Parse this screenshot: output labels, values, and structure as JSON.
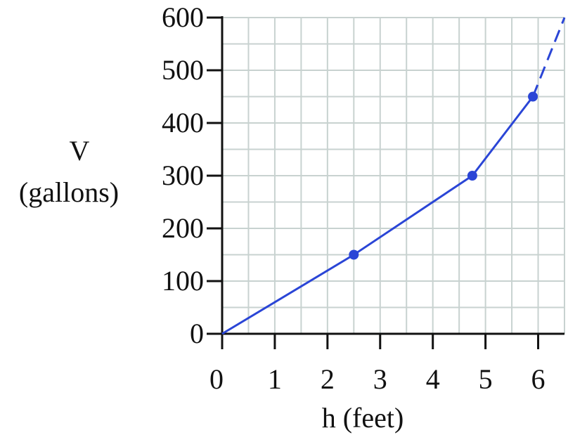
{
  "chart_data": {
    "type": "line",
    "xlabel": "h (feet)",
    "ylabel_lines": [
      "V",
      "(gallons)"
    ],
    "xlim": [
      0,
      6.5
    ],
    "ylim": [
      0,
      600
    ],
    "x_ticks": [
      "0",
      "1",
      "2",
      "3",
      "4",
      "5",
      "6"
    ],
    "y_ticks": [
      "0",
      "100",
      "200",
      "300",
      "400",
      "500",
      "600"
    ],
    "grid": true,
    "grid_minor_step_x": 0.5,
    "grid_minor_step_y": 50,
    "series": [
      {
        "points": [
          [
            0,
            0
          ],
          [
            2.5,
            150
          ],
          [
            4.75,
            300
          ],
          [
            5.9,
            450
          ]
        ],
        "marked_points": [
          [
            2.5,
            150
          ],
          [
            4.75,
            300
          ],
          [
            5.9,
            450
          ]
        ],
        "dashed_extension": [
          [
            5.9,
            450
          ],
          [
            6.5,
            600
          ]
        ]
      }
    ],
    "colors": {
      "line": "#2a45d6",
      "grid": "#c8d2d0",
      "axis": "#111111"
    }
  }
}
